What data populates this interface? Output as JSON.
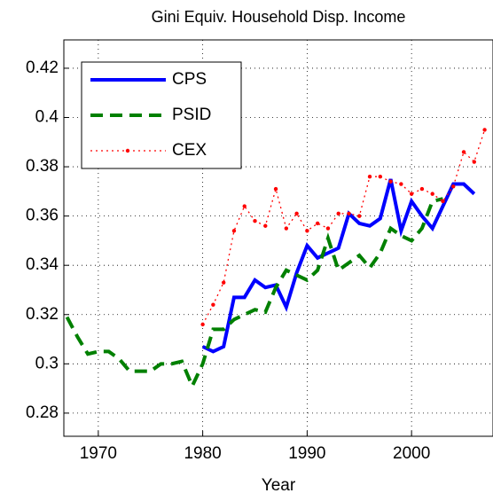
{
  "chart_data": {
    "type": "line",
    "title": "Gini Equiv. Household Disp. Income",
    "x_label": "Year",
    "xlim": [
      1966.7,
      2007.8
    ],
    "xticks": [
      1970,
      1980,
      1990,
      2000
    ],
    "ylim": [
      0.2706,
      0.4315
    ],
    "yticks": [
      0.28,
      0.3,
      0.32,
      0.34,
      0.36,
      0.38,
      0.4,
      0.42
    ],
    "grid": true,
    "legend": "upper left",
    "series": [
      {
        "name": "CPS",
        "color": "#0000ff",
        "style": "solid",
        "x": [
          1980,
          1981,
          1982,
          1983,
          1984,
          1985,
          1986,
          1987,
          1988,
          1989,
          1990,
          1991,
          1992,
          1993,
          1994,
          1995,
          1996,
          1997,
          1998,
          1999,
          2000,
          2001,
          2002,
          2003,
          2004,
          2005,
          2006
        ],
        "values": [
          0.307,
          0.305,
          0.307,
          0.327,
          0.327,
          0.334,
          0.331,
          0.332,
          0.323,
          0.337,
          0.348,
          0.343,
          0.345,
          0.347,
          0.361,
          0.357,
          0.356,
          0.359,
          0.375,
          0.354,
          0.366,
          0.36,
          0.355,
          0.364,
          0.373,
          0.373,
          0.369
        ]
      },
      {
        "name": "PSID",
        "color": "#008000",
        "style": "dashed",
        "x": [
          1967,
          1968,
          1969,
          1970,
          1971,
          1972,
          1973,
          1974,
          1975,
          1976,
          1977,
          1978,
          1979,
          1980,
          1981,
          1982,
          1983,
          1984,
          1985,
          1986,
          1987,
          1988,
          1989,
          1990,
          1991,
          1992,
          1993,
          1994,
          1995,
          1996,
          1997,
          1998,
          1999,
          2000,
          2001,
          2002,
          2003
        ],
        "values": [
          0.319,
          0.311,
          0.304,
          0.305,
          0.305,
          0.302,
          0.297,
          0.297,
          0.297,
          0.3,
          0.3,
          0.301,
          0.291,
          0.3,
          0.314,
          0.314,
          0.318,
          0.32,
          0.322,
          0.321,
          0.331,
          0.338,
          0.336,
          0.334,
          0.338,
          0.351,
          0.338,
          0.341,
          0.344,
          0.339,
          0.345,
          0.355,
          0.352,
          0.35,
          0.355,
          0.366,
          0.367
        ]
      },
      {
        "name": "CEX",
        "color": "#ff0000",
        "style": "dotted",
        "x": [
          1980,
          1981,
          1982,
          1983,
          1984,
          1985,
          1986,
          1987,
          1988,
          1989,
          1990,
          1991,
          1992,
          1993,
          1994,
          1995,
          1996,
          1997,
          1998,
          1999,
          2000,
          2001,
          2002,
          2003,
          2004,
          2005,
          2006,
          2007
        ],
        "values": [
          0.316,
          0.324,
          0.333,
          0.354,
          0.364,
          0.358,
          0.356,
          0.371,
          0.355,
          0.361,
          0.354,
          0.357,
          0.355,
          0.361,
          0.361,
          0.36,
          0.376,
          0.376,
          0.374,
          0.373,
          0.369,
          0.371,
          0.369,
          0.366,
          0.372,
          0.386,
          0.382,
          0.395
        ]
      }
    ]
  }
}
